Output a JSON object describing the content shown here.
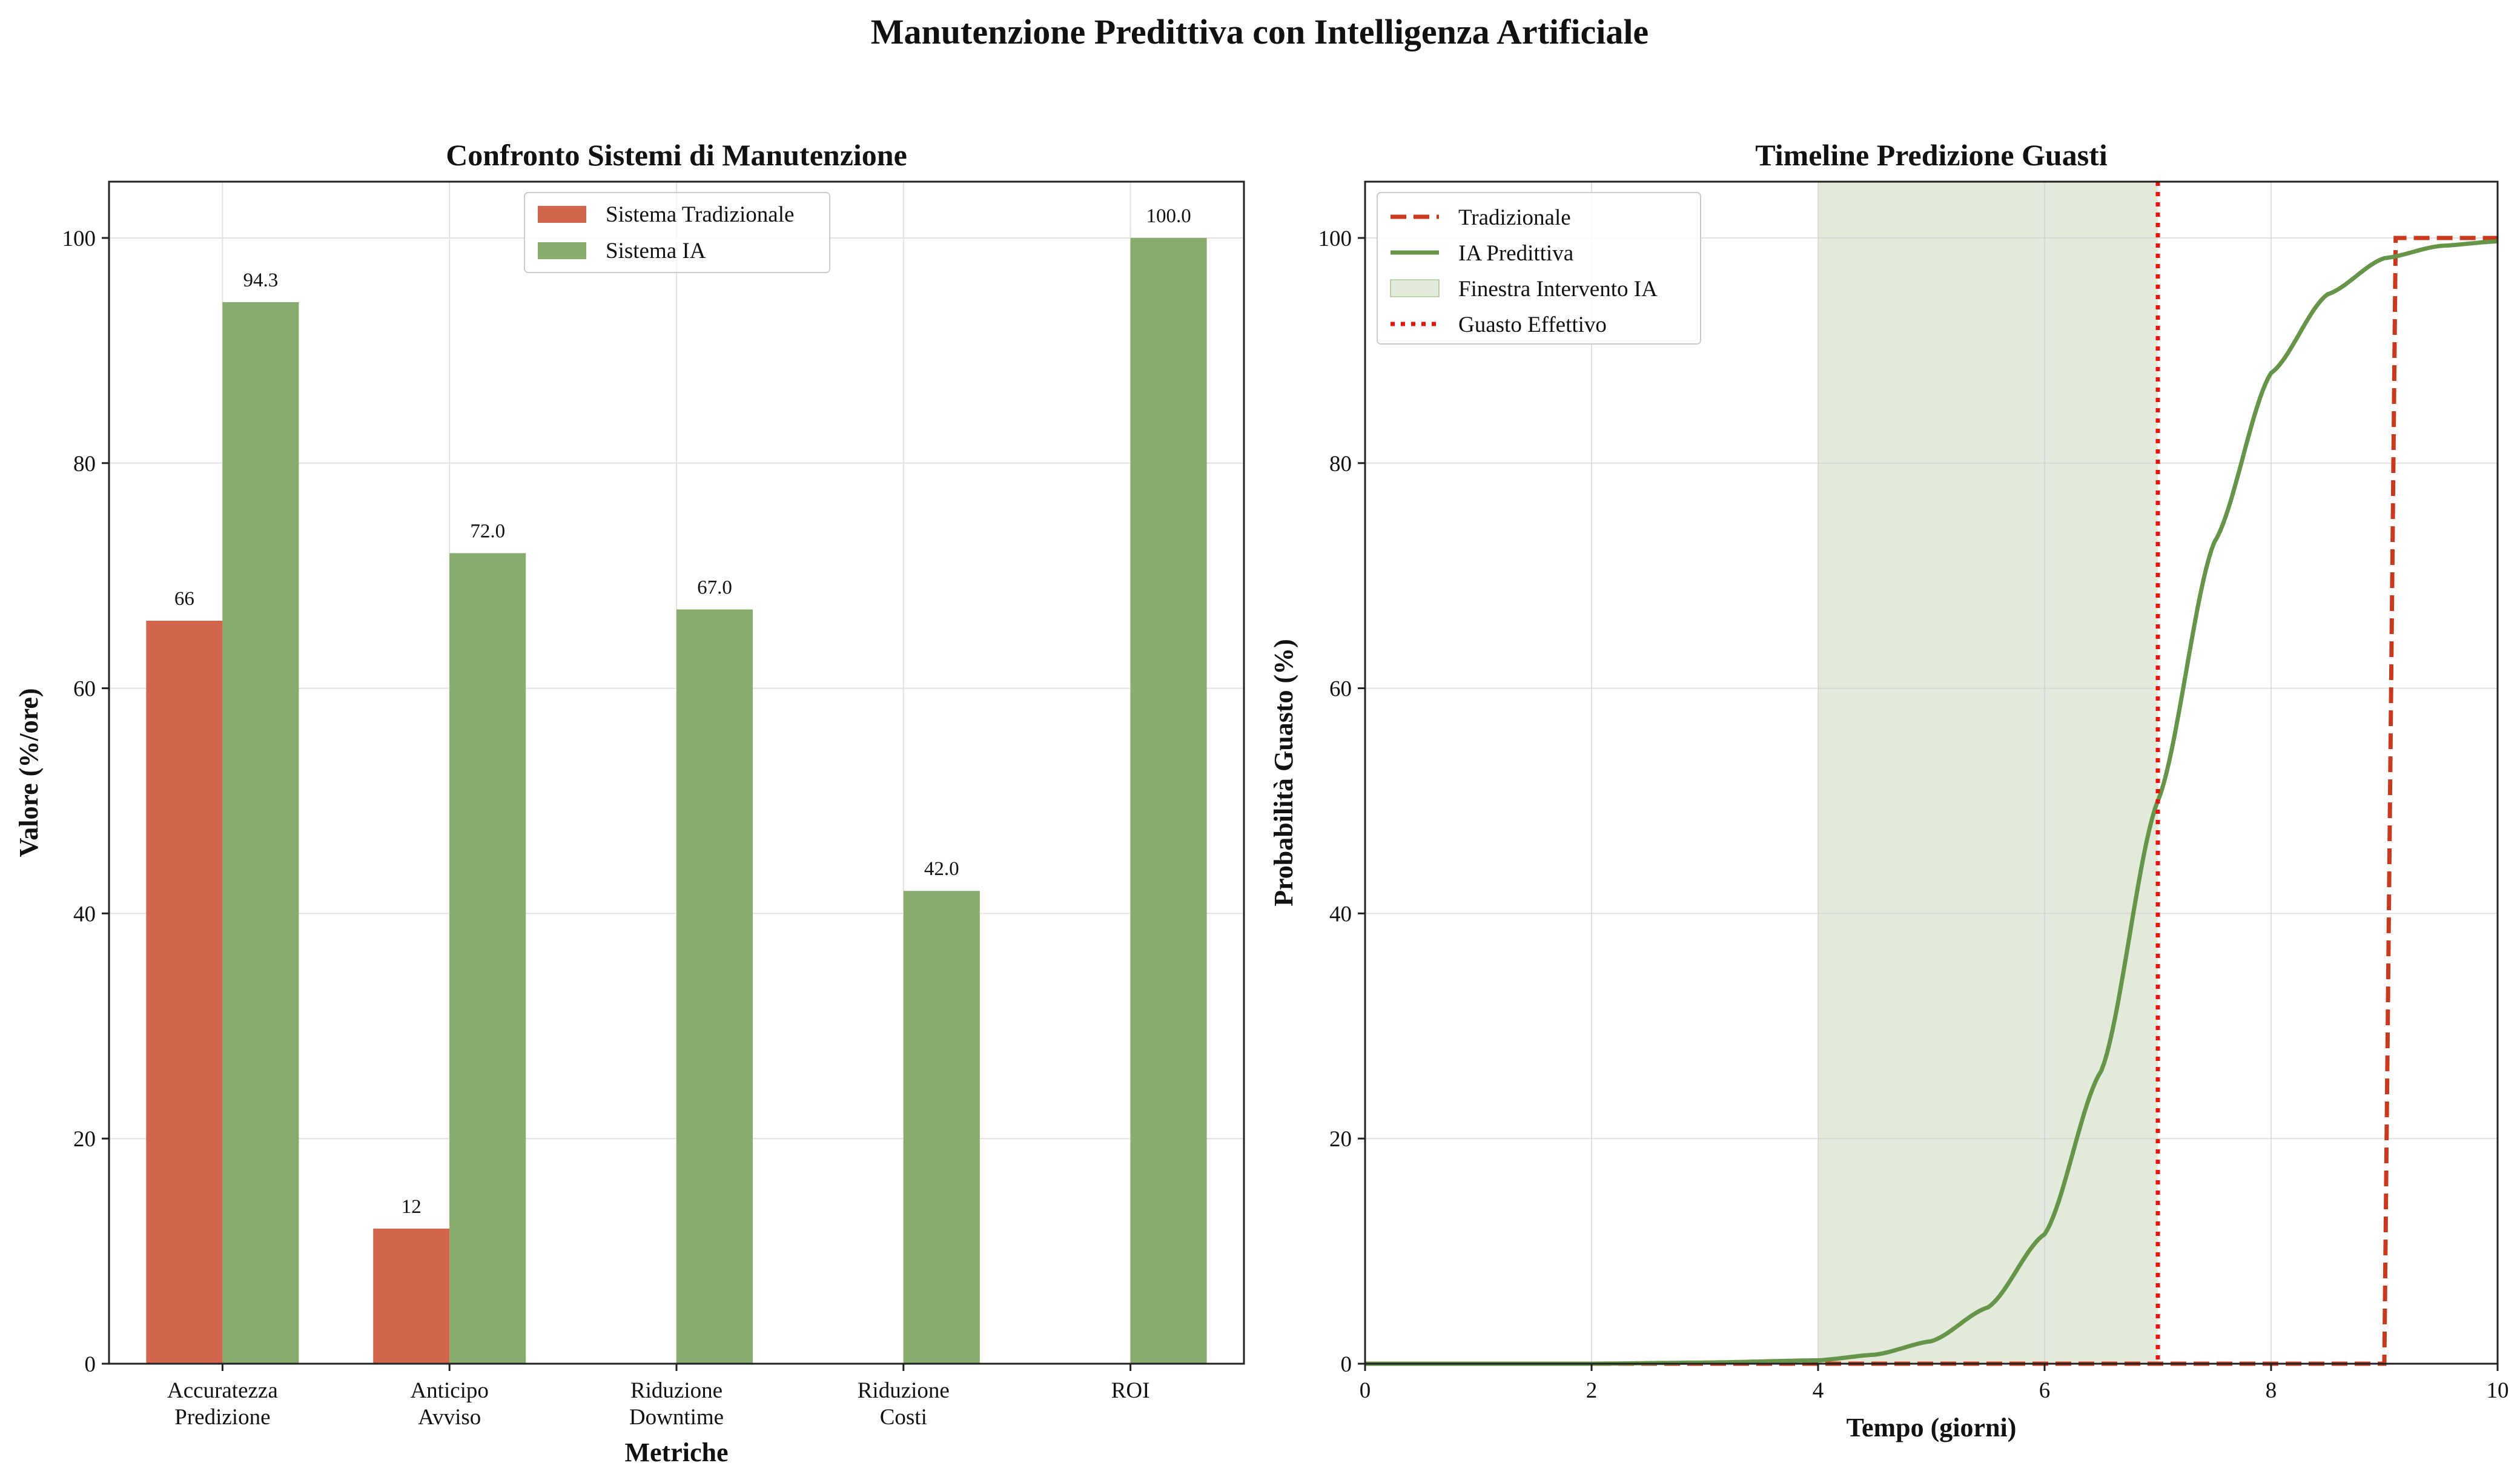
{
  "figure": {
    "title": "Manutenzione Predittiva con Intelligenza Artificiale"
  },
  "chart_data": [
    {
      "type": "bar",
      "title": "Confronto Sistemi di Manutenzione",
      "xlabel": "Metriche",
      "ylabel": "Valore (%/ore)",
      "ylim": [
        0,
        105
      ],
      "yticks": [
        0,
        20,
        40,
        60,
        80,
        100
      ],
      "categories": [
        "Accuratezza\nPredizione",
        "Anticipo\nAvviso",
        "Riduzione\nDowntime",
        "Riduzione\nCosti",
        "ROI"
      ],
      "series": [
        {
          "name": "Sistema Tradizionale",
          "color": "#d2654c",
          "values": [
            66,
            12,
            0,
            0,
            0
          ],
          "labels": [
            "66",
            "12",
            "",
            "",
            ""
          ]
        },
        {
          "name": "Sistema IA",
          "color": "#88ac6e",
          "values": [
            94.3,
            72.0,
            67.0,
            42.0,
            100.0
          ],
          "labels": [
            "94.3",
            "72.0",
            "67.0",
            "42.0",
            "100.0"
          ]
        }
      ],
      "grid": true,
      "legend": "upper-center"
    },
    {
      "type": "line",
      "title": "Timeline Predizione Guasti",
      "xlabel": "Tempo (giorni)",
      "ylabel": "Probabilità Guasto (%)",
      "xlim": [
        0,
        10
      ],
      "ylim": [
        0,
        105
      ],
      "xticks": [
        0,
        2,
        4,
        6,
        8,
        10
      ],
      "yticks": [
        0,
        20,
        40,
        60,
        80,
        100
      ],
      "series": [
        {
          "name": "Tradizionale",
          "color": "#c8391e",
          "style": "dashed",
          "x": [
            0,
            9.0,
            9.1,
            10
          ],
          "y": [
            0,
            0,
            100,
            100
          ]
        },
        {
          "name": "IA Predittiva",
          "color": "#66954a",
          "style": "solid",
          "x": [
            0,
            2,
            3,
            4,
            4.5,
            5,
            5.5,
            6,
            6.5,
            7,
            7.5,
            8,
            8.5,
            9,
            9.5,
            10
          ],
          "y": [
            0,
            0,
            0.1,
            0.3,
            0.8,
            2.0,
            5.0,
            11.5,
            26.0,
            50.0,
            73.0,
            88.0,
            95.0,
            98.2,
            99.3,
            99.7
          ]
        }
      ],
      "shaded_region": {
        "name": "Finestra Intervento IA",
        "color": "#88ac6e",
        "x": [
          4,
          7
        ]
      },
      "vline": {
        "name": "Guasto Effettivo",
        "color": "#e8140c",
        "style": "dotted",
        "x": 7
      },
      "grid": true,
      "legend": "upper-left"
    }
  ]
}
